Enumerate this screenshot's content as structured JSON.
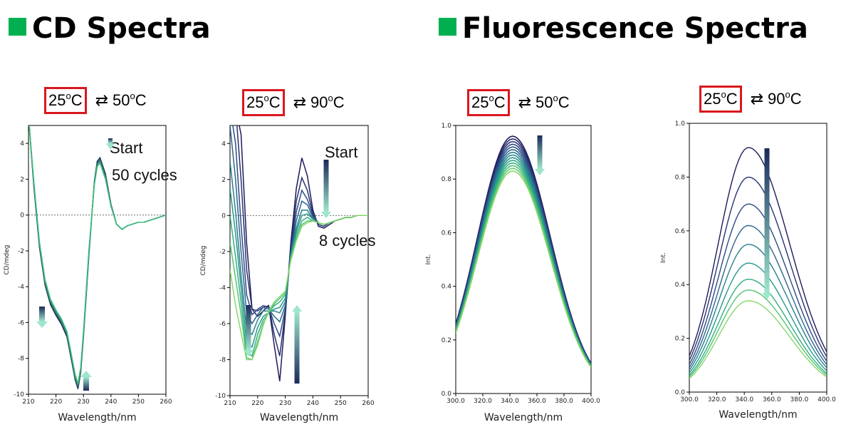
{
  "titles": {
    "cd": "CD Spectra",
    "fluor": "Fluorescence Spectra"
  },
  "conditions": [
    {
      "low_num": "25",
      "low_sup": "o",
      "low_unit": "C",
      "arrow": "⇄",
      "high_num": "50",
      "high_sup": "o",
      "high_unit": "C"
    },
    {
      "low_num": "25",
      "low_sup": "o",
      "low_unit": "C",
      "arrow": "⇄",
      "high_num": "90",
      "high_sup": "o",
      "high_unit": "C"
    },
    {
      "low_num": "25",
      "low_sup": "o",
      "low_unit": "C",
      "arrow": "⇄",
      "high_num": "50",
      "high_sup": "o",
      "high_unit": "C"
    },
    {
      "low_num": "25",
      "low_sup": "o",
      "low_unit": "C",
      "arrow": "⇄",
      "high_num": "90",
      "high_sup": "o",
      "high_unit": "C"
    }
  ],
  "colors": {
    "accent_green": "#00b050",
    "highlight_red": "#d9181e",
    "gradient": [
      "#1f1a5a",
      "#2d3f7e",
      "#2d6a8e",
      "#23938c",
      "#35b77a",
      "#86d66a"
    ]
  },
  "chart_data": [
    {
      "type": "line",
      "title": "",
      "xlabel": "Wavelength/nm",
      "ylabel": "CD/mdeg",
      "xlim": [
        210,
        260
      ],
      "ylim": [
        -10,
        5
      ],
      "xticks": [
        210,
        220,
        230,
        240,
        250,
        260
      ],
      "yticks": [
        -10,
        -8,
        -6,
        -4,
        -2,
        0,
        2,
        4
      ],
      "zero_line": true,
      "annotations": [
        "Start",
        "50 cycles"
      ],
      "x": [
        210,
        212,
        214,
        216,
        218,
        220,
        222,
        224,
        226,
        227,
        228,
        229,
        230,
        232,
        234,
        235,
        236,
        238,
        240,
        242,
        244,
        246,
        248,
        250,
        252,
        254,
        256,
        258,
        260
      ],
      "series": [
        {
          "values": [
            5.5,
            1.5,
            -1.8,
            -3.9,
            -5.0,
            -5.6,
            -6.1,
            -6.8,
            -8.4,
            -9.2,
            -9.7,
            -8.8,
            -6.8,
            -2.2,
            1.9,
            3.0,
            3.2,
            2.3,
            0.6,
            -0.5,
            -0.8,
            -0.6,
            -0.5,
            -0.4,
            -0.4,
            -0.3,
            -0.2,
            -0.1,
            0.0
          ]
        },
        {
          "values": [
            5.5,
            1.6,
            -1.7,
            -3.8,
            -4.9,
            -5.5,
            -6.0,
            -6.7,
            -8.3,
            -9.1,
            -9.6,
            -8.7,
            -6.7,
            -2.1,
            1.9,
            2.9,
            3.1,
            2.2,
            0.6,
            -0.5,
            -0.8,
            -0.6,
            -0.5,
            -0.4,
            -0.4,
            -0.3,
            -0.2,
            -0.1,
            0.0
          ]
        },
        {
          "values": [
            5.5,
            1.7,
            -1.6,
            -3.7,
            -4.8,
            -5.4,
            -5.9,
            -6.6,
            -8.2,
            -9.0,
            -9.5,
            -8.6,
            -6.6,
            -2.0,
            1.8,
            2.8,
            3.0,
            2.1,
            0.5,
            -0.5,
            -0.8,
            -0.6,
            -0.5,
            -0.4,
            -0.4,
            -0.3,
            -0.2,
            -0.1,
            0.0
          ]
        },
        {
          "values": [
            5.5,
            1.8,
            -1.5,
            -3.6,
            -4.7,
            -5.3,
            -5.8,
            -6.5,
            -8.1,
            -8.9,
            -9.4,
            -8.5,
            -6.5,
            -1.9,
            1.7,
            2.7,
            2.9,
            2.0,
            0.5,
            -0.5,
            -0.8,
            -0.6,
            -0.5,
            -0.4,
            -0.4,
            -0.3,
            -0.2,
            -0.1,
            0.0
          ]
        }
      ]
    },
    {
      "type": "line",
      "title": "",
      "xlabel": "Wavelength/nm",
      "ylabel": "CD/mdeg",
      "xlim": [
        210,
        260
      ],
      "ylim": [
        -10,
        5
      ],
      "xticks": [
        210,
        220,
        230,
        240,
        250,
        260
      ],
      "yticks": [
        -10,
        -8,
        -6,
        -4,
        -2,
        0,
        2,
        4
      ],
      "zero_line": true,
      "annotations": [
        "Start",
        "8 cycles"
      ],
      "x": [
        210,
        212,
        214,
        216,
        218,
        220,
        222,
        224,
        226,
        228,
        230,
        232,
        234,
        236,
        238,
        240,
        242,
        244,
        246,
        248,
        250,
        252,
        254,
        256,
        258,
        260
      ],
      "series": [
        {
          "values": [
            6.0,
            6.0,
            4.5,
            -1.5,
            -5.2,
            -5.6,
            -5.3,
            -5.0,
            -7.2,
            -9.2,
            -5.6,
            -1.5,
            1.5,
            3.2,
            2.2,
            0.3,
            -0.6,
            -0.7,
            -0.5,
            -0.3,
            -0.2,
            -0.1,
            -0.1,
            0.0,
            0.0,
            0.0
          ]
        },
        {
          "values": [
            6.0,
            6.0,
            2.0,
            -3.0,
            -5.2,
            -5.3,
            -5.1,
            -5.0,
            -6.6,
            -7.8,
            -5.4,
            -1.8,
            0.8,
            2.1,
            1.4,
            0.1,
            -0.5,
            -0.6,
            -0.4,
            -0.3,
            -0.2,
            -0.1,
            -0.1,
            0.0,
            0.0,
            0.0
          ]
        },
        {
          "values": [
            6.0,
            4.0,
            -0.5,
            -4.4,
            -5.5,
            -5.2,
            -5.0,
            -5.1,
            -6.0,
            -6.7,
            -5.2,
            -2.0,
            0.2,
            1.4,
            0.9,
            0.0,
            -0.4,
            -0.5,
            -0.4,
            -0.3,
            -0.2,
            -0.1,
            -0.1,
            0.0,
            0.0,
            0.0
          ]
        },
        {
          "values": [
            5.0,
            2.0,
            -2.0,
            -5.4,
            -6.0,
            -5.5,
            -5.1,
            -5.2,
            -5.6,
            -5.9,
            -5.0,
            -2.1,
            -0.3,
            0.8,
            0.6,
            -0.1,
            -0.4,
            -0.5,
            -0.4,
            -0.3,
            -0.2,
            -0.1,
            -0.1,
            0.0,
            0.0,
            0.0
          ]
        },
        {
          "values": [
            3.0,
            0.2,
            -3.3,
            -6.3,
            -6.6,
            -5.8,
            -5.3,
            -5.3,
            -5.3,
            -5.4,
            -4.8,
            -2.2,
            -0.7,
            0.3,
            0.3,
            -0.2,
            -0.4,
            -0.5,
            -0.4,
            -0.3,
            -0.2,
            -0.1,
            -0.1,
            0.0,
            0.0,
            0.0
          ]
        },
        {
          "values": [
            1.5,
            -1.0,
            -4.0,
            -7.0,
            -7.3,
            -6.2,
            -5.6,
            -5.4,
            -5.2,
            -5.1,
            -4.6,
            -2.2,
            -0.9,
            0.0,
            0.1,
            -0.2,
            -0.4,
            -0.5,
            -0.4,
            -0.3,
            -0.2,
            -0.1,
            -0.1,
            0.0,
            0.0,
            0.0
          ]
        },
        {
          "values": [
            0.0,
            -2.3,
            -4.8,
            -7.6,
            -7.8,
            -6.6,
            -5.8,
            -5.4,
            -5.0,
            -4.8,
            -4.4,
            -2.3,
            -1.1,
            -0.3,
            -0.1,
            -0.3,
            -0.4,
            -0.5,
            -0.4,
            -0.3,
            -0.2,
            -0.1,
            -0.1,
            0.0,
            0.0,
            0.0
          ]
        },
        {
          "values": [
            -1.5,
            -3.5,
            -5.5,
            -7.9,
            -8.0,
            -7.0,
            -6.0,
            -5.4,
            -4.9,
            -4.6,
            -4.3,
            -2.4,
            -1.3,
            -0.5,
            -0.3,
            -0.3,
            -0.4,
            -0.5,
            -0.4,
            -0.3,
            -0.2,
            -0.1,
            -0.1,
            0.0,
            0.0,
            0.0
          ]
        },
        {
          "values": [
            -3.0,
            -5.0,
            -6.5,
            -8.0,
            -8.0,
            -7.2,
            -6.1,
            -5.3,
            -4.8,
            -4.5,
            -4.2,
            -2.5,
            -1.4,
            -0.6,
            -0.4,
            -0.3,
            -0.4,
            -0.5,
            -0.4,
            -0.3,
            -0.2,
            -0.1,
            -0.1,
            0.0,
            0.0,
            0.0
          ]
        }
      ]
    },
    {
      "type": "line",
      "title": "",
      "xlabel": "Wavelength/nm",
      "ylabel": "Int.",
      "xlim": [
        300,
        400
      ],
      "ylim": [
        0.0,
        1.0
      ],
      "xticks": [
        300,
        320,
        340,
        360,
        380,
        400
      ],
      "yticks": [
        0.0,
        0.2,
        0.4,
        0.6,
        0.8,
        1.0
      ],
      "zero_line": false,
      "shape": {
        "center": 342,
        "width_left": 26,
        "width_right": 28
      },
      "peak_values": [
        0.96,
        0.95,
        0.94,
        0.93,
        0.92,
        0.91,
        0.9,
        0.89,
        0.88,
        0.87,
        0.86,
        0.85,
        0.84,
        0.83
      ]
    },
    {
      "type": "line",
      "title": "",
      "xlabel": "Wavelength/nm",
      "ylabel": "Int.",
      "xlim": [
        300,
        400
      ],
      "ylim": [
        0.0,
        1.0
      ],
      "xticks": [
        300,
        320,
        340,
        360,
        380,
        400
      ],
      "yticks": [
        0.0,
        0.2,
        0.4,
        0.6,
        0.8,
        1.0
      ],
      "zero_line": false,
      "shape": {
        "center": 343,
        "width_left": 22,
        "width_right": 30
      },
      "peak_values": [
        0.91,
        0.8,
        0.7,
        0.62,
        0.55,
        0.48,
        0.42,
        0.38,
        0.34
      ]
    }
  ]
}
